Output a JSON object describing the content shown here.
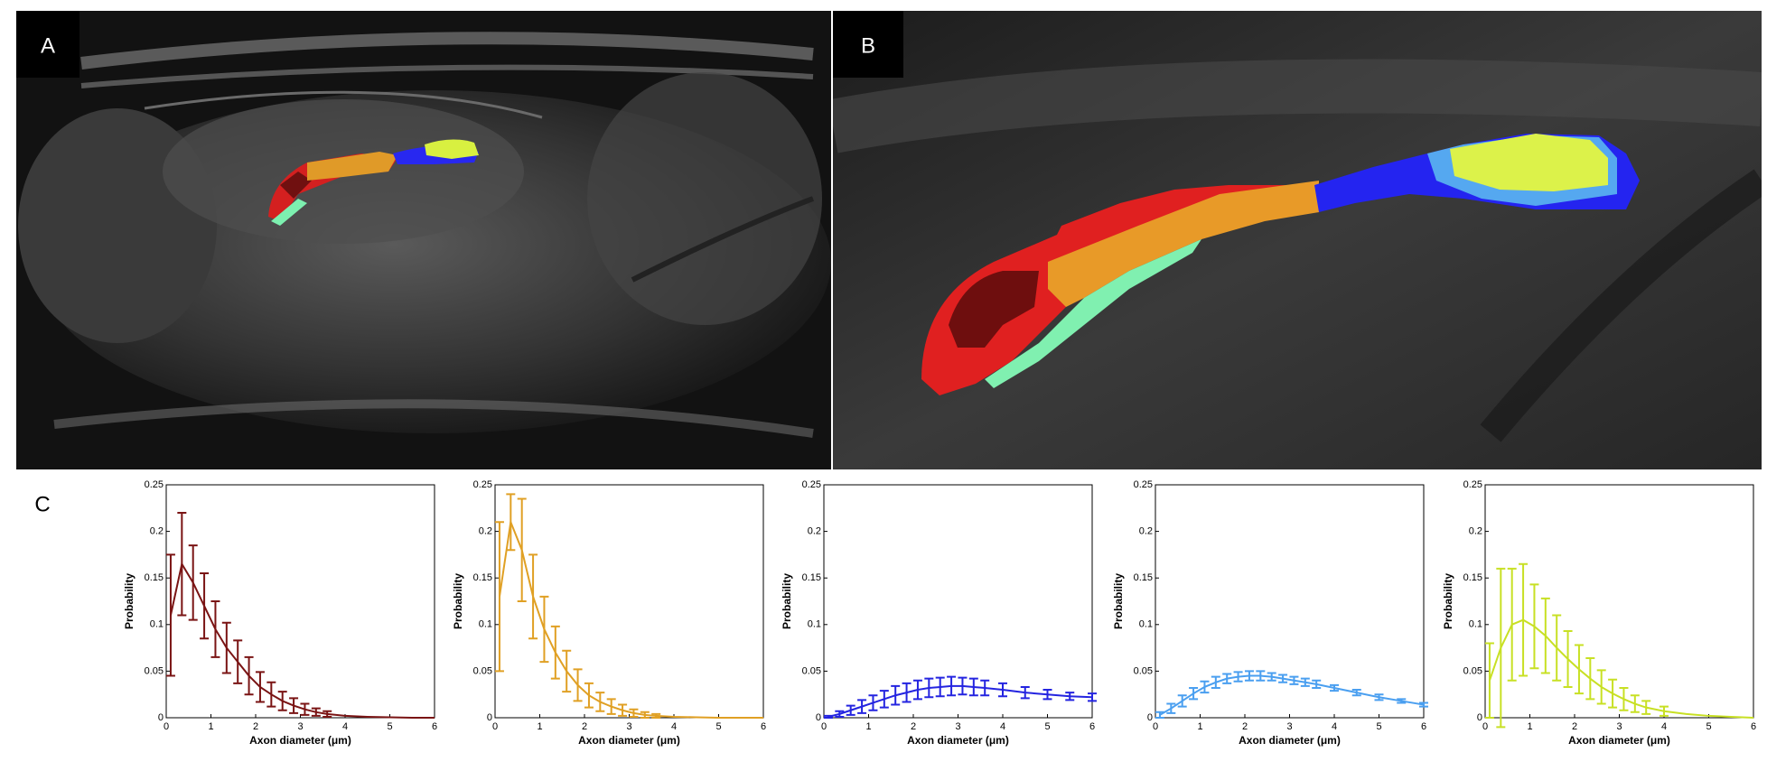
{
  "panel_labels": [
    "A",
    "B",
    "C"
  ],
  "chart_data": [
    {
      "type": "line",
      "xlabel": "Axon diameter (μm)",
      "ylabel": "Probability",
      "color": "#7a1414",
      "x": [
        0.1,
        0.35,
        0.6,
        0.85,
        1.1,
        1.35,
        1.6,
        1.85,
        2.1,
        2.35,
        2.6,
        2.85,
        3.1,
        3.35,
        3.6,
        4,
        4.5,
        5,
        5.5,
        6
      ],
      "values": [
        0.11,
        0.165,
        0.145,
        0.12,
        0.095,
        0.075,
        0.06,
        0.045,
        0.033,
        0.025,
        0.018,
        0.013,
        0.009,
        0.006,
        0.004,
        0.002,
        0.001,
        0.0005,
        0,
        0
      ],
      "errors": [
        0.065,
        0.055,
        0.04,
        0.035,
        0.03,
        0.027,
        0.023,
        0.02,
        0.016,
        0.013,
        0.01,
        0.008,
        0.006,
        0.004,
        0.003,
        null,
        null,
        null,
        null,
        null
      ],
      "xlim": [
        0,
        6
      ],
      "ylim": [
        0,
        0.25
      ],
      "xticks": [
        0,
        1,
        2,
        3,
        4,
        5,
        6
      ],
      "yticks": [
        0,
        0.05,
        0.1,
        0.15,
        0.2,
        0.25
      ]
    },
    {
      "type": "line",
      "xlabel": "Axon diameter (μm)",
      "ylabel": "Probability",
      "color": "#e0a024",
      "x": [
        0.1,
        0.35,
        0.6,
        0.85,
        1.1,
        1.35,
        1.6,
        1.85,
        2.1,
        2.35,
        2.6,
        2.85,
        3.1,
        3.35,
        3.6,
        4,
        4.5,
        5,
        5.5,
        6
      ],
      "values": [
        0.13,
        0.21,
        0.18,
        0.13,
        0.095,
        0.07,
        0.05,
        0.035,
        0.024,
        0.017,
        0.012,
        0.008,
        0.005,
        0.003,
        0.002,
        0.001,
        0.0005,
        0,
        0,
        0
      ],
      "errors": [
        0.08,
        0.03,
        0.055,
        0.045,
        0.035,
        0.028,
        0.022,
        0.017,
        0.013,
        0.01,
        0.008,
        0.006,
        0.004,
        0.003,
        0.002,
        null,
        null,
        null,
        null,
        null
      ],
      "xlim": [
        0,
        6
      ],
      "ylim": [
        0,
        0.25
      ],
      "xticks": [
        0,
        1,
        2,
        3,
        4,
        5,
        6
      ],
      "yticks": [
        0,
        0.05,
        0.1,
        0.15,
        0.2,
        0.25
      ]
    },
    {
      "type": "line",
      "xlabel": "Axon diameter (μm)",
      "ylabel": "Probability",
      "color": "#2424e0",
      "x": [
        0.1,
        0.35,
        0.6,
        0.85,
        1.1,
        1.35,
        1.6,
        1.85,
        2.1,
        2.35,
        2.6,
        2.85,
        3.1,
        3.35,
        3.6,
        4,
        4.5,
        5,
        5.5,
        6
      ],
      "values": [
        0.001,
        0.004,
        0.008,
        0.012,
        0.016,
        0.02,
        0.024,
        0.027,
        0.03,
        0.032,
        0.033,
        0.034,
        0.034,
        0.033,
        0.032,
        0.03,
        0.027,
        0.025,
        0.023,
        0.022
      ],
      "errors": [
        0.001,
        0.003,
        0.005,
        0.007,
        0.008,
        0.009,
        0.01,
        0.01,
        0.01,
        0.01,
        0.01,
        0.01,
        0.009,
        0.009,
        0.008,
        0.007,
        0.006,
        0.005,
        0.004,
        0.004
      ],
      "xlim": [
        0,
        6
      ],
      "ylim": [
        0,
        0.25
      ],
      "xticks": [
        0,
        1,
        2,
        3,
        4,
        5,
        6
      ],
      "yticks": [
        0,
        0.05,
        0.1,
        0.15,
        0.2,
        0.25
      ]
    },
    {
      "type": "line",
      "xlabel": "Axon diameter (μm)",
      "ylabel": "Probability",
      "color": "#4a9ff0",
      "x": [
        0.1,
        0.35,
        0.6,
        0.85,
        1.1,
        1.35,
        1.6,
        1.85,
        2.1,
        2.35,
        2.6,
        2.85,
        3.1,
        3.35,
        3.6,
        4,
        4.5,
        5,
        5.5,
        6
      ],
      "values": [
        0.003,
        0.01,
        0.018,
        0.026,
        0.033,
        0.038,
        0.042,
        0.044,
        0.045,
        0.045,
        0.044,
        0.042,
        0.04,
        0.038,
        0.036,
        0.032,
        0.027,
        0.022,
        0.018,
        0.014
      ],
      "errors": [
        0.003,
        0.005,
        0.006,
        0.006,
        0.006,
        0.006,
        0.005,
        0.005,
        0.005,
        0.005,
        0.004,
        0.004,
        0.004,
        0.004,
        0.004,
        0.003,
        0.003,
        0.003,
        0.002,
        0.002
      ],
      "xlim": [
        0,
        6
      ],
      "ylim": [
        0,
        0.25
      ],
      "xticks": [
        0,
        1,
        2,
        3,
        4,
        5,
        6
      ],
      "yticks": [
        0,
        0.05,
        0.1,
        0.15,
        0.2,
        0.25
      ]
    },
    {
      "type": "line",
      "xlabel": "Axon diameter (μm)",
      "ylabel": "Probability",
      "color": "#c8e024",
      "x": [
        0.1,
        0.35,
        0.6,
        0.85,
        1.1,
        1.35,
        1.6,
        1.85,
        2.1,
        2.35,
        2.6,
        2.85,
        3.1,
        3.35,
        3.6,
        4,
        4.5,
        5,
        5.5,
        6
      ],
      "values": [
        0.04,
        0.075,
        0.1,
        0.105,
        0.098,
        0.088,
        0.075,
        0.063,
        0.052,
        0.042,
        0.033,
        0.026,
        0.02,
        0.015,
        0.011,
        0.007,
        0.004,
        0.002,
        0.001,
        0
      ],
      "errors": [
        0.04,
        0.085,
        0.06,
        0.06,
        0.045,
        0.04,
        0.035,
        0.03,
        0.026,
        0.022,
        0.018,
        0.015,
        0.012,
        0.009,
        0.007,
        0.005,
        null,
        null,
        null,
        null
      ],
      "xlim": [
        0,
        6
      ],
      "ylim": [
        0,
        0.25
      ],
      "xticks": [
        0,
        1,
        2,
        3,
        4,
        5,
        6
      ],
      "yticks": [
        0,
        0.05,
        0.1,
        0.15,
        0.2,
        0.25
      ]
    }
  ]
}
